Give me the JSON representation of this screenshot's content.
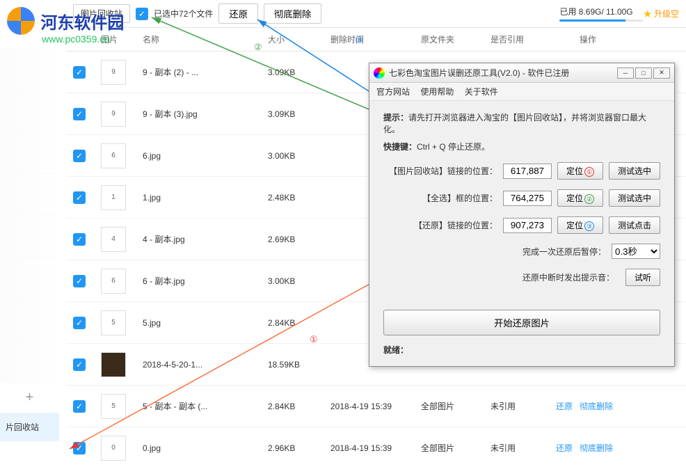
{
  "watermark": {
    "site_name": "河东软件园",
    "url": "www.pc0359.cn"
  },
  "topbar": {
    "recycle_title": "图片回收站",
    "selected_text": "已选中72个文件",
    "restore_btn": "还原",
    "delete_btn": "彻底删除",
    "storage_text": "已用 8.69G/ 11.00G",
    "storage_pct": 79,
    "upgrade": "升级空"
  },
  "headers": {
    "thumb": "图片",
    "name": "名称",
    "size": "大小",
    "time": "删除时间",
    "folder": "原文件夹",
    "ref": "是否引用",
    "ops": "操作"
  },
  "rows": [
    {
      "thumb": "9",
      "name": "9 - 副本 (2) - ...",
      "size": "3.09KB",
      "time": "",
      "folder": "",
      "ref": "",
      "dark": false
    },
    {
      "thumb": "9",
      "name": "9 - 副本 (3).jpg",
      "size": "3.09KB",
      "time": "",
      "folder": "",
      "ref": "",
      "dark": false
    },
    {
      "thumb": "6",
      "name": "6.jpg",
      "size": "3.00KB",
      "time": "",
      "folder": "",
      "ref": "",
      "dark": false
    },
    {
      "thumb": "1",
      "name": "1.jpg",
      "size": "2.48KB",
      "time": "",
      "folder": "",
      "ref": "",
      "dark": false
    },
    {
      "thumb": "4",
      "name": "4 - 副本.jpg",
      "size": "2.69KB",
      "time": "",
      "folder": "",
      "ref": "",
      "dark": false
    },
    {
      "thumb": "6",
      "name": "6 - 副本.jpg",
      "size": "3.00KB",
      "time": "",
      "folder": "",
      "ref": "",
      "dark": false
    },
    {
      "thumb": "5",
      "name": "5.jpg",
      "size": "2.84KB",
      "time": "",
      "folder": "",
      "ref": "",
      "dark": false
    },
    {
      "thumb": "",
      "name": "2018-4-5-20-1...",
      "size": "18.59KB",
      "time": "",
      "folder": "",
      "ref": "",
      "dark": true
    },
    {
      "thumb": "5",
      "name": "5 - 副本 - 副本 (...",
      "size": "2.84KB",
      "time": "2018-4-19 15:39",
      "folder": "全部图片",
      "ref": "未引用",
      "dark": false
    },
    {
      "thumb": "0",
      "name": "0.jpg",
      "size": "2.96KB",
      "time": "2018-4-19 15:39",
      "folder": "全部图片",
      "ref": "未引用",
      "dark": false
    }
  ],
  "row_ops": {
    "restore": "还原",
    "delete": "彻底删除"
  },
  "sidebar": {
    "recycle": "片回收站"
  },
  "dialog": {
    "title": "七彩色淘宝图片误删还原工具(V2.0) - 软件已注册",
    "menu": {
      "site": "官方网站",
      "help": "使用帮助",
      "about": "关于软件"
    },
    "hint_label": "提示：",
    "hint_text": "请先打开浏览器进入淘宝的【图片回收站】，并将浏览器窗口最大化。",
    "shortcut_label": "快捷键：",
    "shortcut_text": "Ctrl + Q 停止还原。",
    "pos1_label": "【图片回收站】链接的位置：",
    "pos1_val": "617,887",
    "pos2_label": "【全选】框的位置：",
    "pos2_val": "764,275",
    "pos3_label": "【还原】链接的位置：",
    "pos3_val": "907,273",
    "locate_btn": "定位",
    "test_sel": "测试选中",
    "test_click": "测试点击",
    "pause_label": "完成一次还原后暂停：",
    "pause_val": "0.3秒",
    "sound_label": "还原中断时发出提示音：",
    "sound_btn": "试听",
    "start_btn": "开始还原图片",
    "status_label": "就绪："
  },
  "annotations": {
    "n1": "①",
    "n2": "②",
    "n3": "③"
  }
}
